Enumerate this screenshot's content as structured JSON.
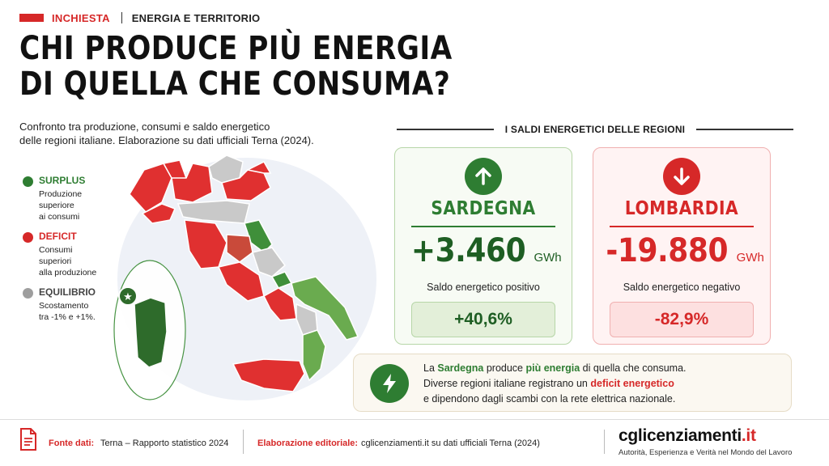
{
  "header": {
    "tag": "INCHIESTA",
    "section": "ENERGIA E TERRITORIO",
    "title_line1": "CHI PRODUCE PIÙ ENERGIA",
    "title_line2": "DI QUELLA CHE CONSUMA?",
    "subtitle_line1": "Confronto tra produzione, consumi e saldo energetico",
    "subtitle_line2": "delle regioni italiane. Elaborazione su dati ufficiali Terna (2024)."
  },
  "legend": [
    {
      "title": "SURPLUS",
      "lines": [
        "Produzione",
        "superiore",
        "ai consumi"
      ],
      "color": "#2e7d32",
      "title_color": "#2e7d32"
    },
    {
      "title": "DEFICIT",
      "lines": [
        "Consumi",
        "superiori",
        "alla produzione"
      ],
      "color": "#d62828",
      "title_color": "#d62828"
    },
    {
      "title": "EQUILIBRIO",
      "lines": [
        "Scostamento",
        "tra -1% e +1%."
      ],
      "color": "#9e9e9e",
      "title_color": "#444444"
    }
  ],
  "panel": {
    "title": "I SALDI ENERGETICI DELLE REGIONI"
  },
  "cards": {
    "green": {
      "icon": "arrow-up-icon",
      "region": "SARDEGNA",
      "value": "+3.460",
      "unit": "GWh",
      "label": "Saldo energetico positivo",
      "percent": "+40,6%",
      "color": "#2e7d32"
    },
    "red": {
      "icon": "arrow-down-icon",
      "region": "LOMBARDIA",
      "value": "-19.880",
      "unit": "GWh",
      "label": "Saldo energetico negativo",
      "percent": "-82,9%",
      "color": "#d62828"
    }
  },
  "note": {
    "icon": "lightning-icon",
    "l1_a": "La ",
    "l1_b": "Sardegna",
    "l1_c": " produce ",
    "l1_d": "più energia",
    "l1_e": " di quella che consuma.",
    "l2_a": "Diverse regioni italiane registrano un ",
    "l2_b": "deficit energetico",
    "l3": "e dipendono dagli scambi con la rete elettrica nazionale."
  },
  "footer": {
    "source_label": "Fonte dati:",
    "source_value": "Terna – Rapporto statistico 2024",
    "edit_label": "Elaborazione editoriale:",
    "edit_value": "cglicenziamenti.it su dati ufficiali Terna (2024)",
    "brand_main": "cglicenziamenti",
    "brand_tld": ".it",
    "brand_tagline": "Autorità, Esperienza e Verità nel Mondo del Lavoro"
  },
  "map": {
    "colors": {
      "surplus": "#3f8f3a",
      "deficit": "#e03030",
      "equilibrio": "#c9c9c9",
      "surplus_light": "#6aab4f",
      "deficit_dark": "#c94a3a"
    }
  }
}
